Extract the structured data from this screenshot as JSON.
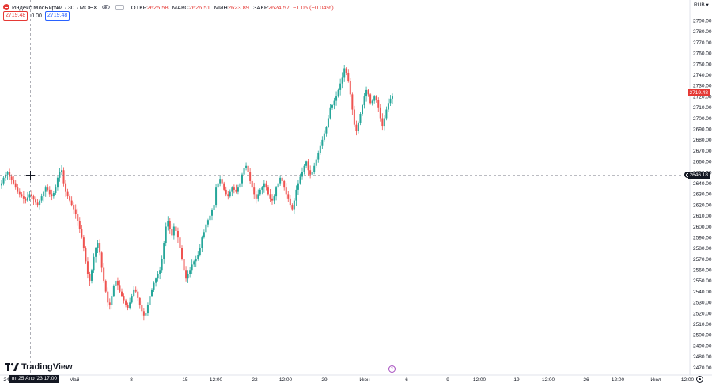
{
  "header": {
    "symbol": "Индекс МосБиржи · 30 · MOEX",
    "open_label": "ОТКР",
    "open_value": "2625.58",
    "high_label": "МАКС",
    "high_value": "2626.51",
    "low_label": "МИН",
    "low_value": "2623.89",
    "close_label": "ЗАКР",
    "close_value": "2624.57",
    "change": "−1.05 (−0.04%)",
    "bid": "2719.48",
    "spread": "0.00",
    "ask": "2719.48"
  },
  "currency": "RUB",
  "price_axis": {
    "ticks": [
      "2790.00",
      "2780.00",
      "2770.00",
      "2760.00",
      "2750.00",
      "2740.00",
      "2730.00",
      "2720.00",
      "2710.00",
      "2700.00",
      "2690.00",
      "2680.00",
      "2670.00",
      "2660.00",
      "2650.00",
      "2640.00",
      "2630.00",
      "2620.00",
      "2610.00",
      "2600.00",
      "2590.00",
      "2580.00",
      "2570.00",
      "2560.00",
      "2550.00",
      "2540.00",
      "2530.00",
      "2520.00",
      "2510.00",
      "2500.00",
      "2490.00",
      "2480.00",
      "2470.00"
    ],
    "last_price_tag": "2719.48",
    "crosshair_price_tag": "2646.18"
  },
  "time_axis": {
    "labels": [
      "24",
      "Май",
      "8",
      "15",
      "12:00",
      "22",
      "12:00",
      "29",
      "Июн",
      "6",
      "9",
      "12:00",
      "19",
      "12:00",
      "26",
      "12:00",
      "Июл",
      "12:00"
    ],
    "crosshair_label": "вт 25 Апр '23   17:00"
  },
  "branding": "TradingView",
  "colors": {
    "up": "#26a69a",
    "down": "#ef5350",
    "accent": "#2962ff"
  },
  "chart_data": {
    "type": "candlestick",
    "symbol": "Индекс МосБиржи",
    "interval": "30",
    "ylim": [
      2466,
      2796
    ],
    "series": [
      {
        "values": [
          2640,
          2645,
          2648,
          2650,
          2646,
          2643,
          2640,
          2636,
          2632,
          2630,
          2628,
          2626,
          2624,
          2627,
          2630,
          2628,
          2625,
          2622,
          2620,
          2624,
          2628,
          2632,
          2636,
          2634,
          2630,
          2628,
          2631,
          2636,
          2645,
          2650,
          2652,
          2640,
          2632,
          2628,
          2624,
          2620,
          2616,
          2612,
          2605,
          2598,
          2590,
          2580,
          2568,
          2556,
          2550,
          2560,
          2572,
          2580,
          2585,
          2576,
          2562,
          2550,
          2540,
          2530,
          2528,
          2536,
          2545,
          2550,
          2546,
          2540,
          2536,
          2532,
          2528,
          2525,
          2530,
          2536,
          2542,
          2540,
          2534,
          2528,
          2522,
          2518,
          2520,
          2528,
          2536,
          2542,
          2548,
          2552,
          2556,
          2560,
          2570,
          2585,
          2600,
          2605,
          2598,
          2592,
          2600,
          2596,
          2590,
          2580,
          2570,
          2560,
          2552,
          2556,
          2560,
          2565,
          2568,
          2570,
          2574,
          2580,
          2590,
          2595,
          2602,
          2606,
          2610,
          2615,
          2620,
          2636,
          2640,
          2644,
          2640,
          2634,
          2630,
          2628,
          2632,
          2636,
          2634,
          2632,
          2636,
          2640,
          2648,
          2654,
          2656,
          2650,
          2642,
          2636,
          2630,
          2626,
          2630,
          2634,
          2636,
          2640,
          2636,
          2630,
          2626,
          2624,
          2628,
          2636,
          2640,
          2645,
          2642,
          2636,
          2630,
          2626,
          2620,
          2616,
          2624,
          2634,
          2640,
          2646,
          2650,
          2656,
          2660,
          2652,
          2648,
          2650,
          2656,
          2662,
          2668,
          2675,
          2680,
          2686,
          2692,
          2700,
          2710,
          2712,
          2716,
          2720,
          2726,
          2732,
          2738,
          2746,
          2742,
          2734,
          2722,
          2708,
          2694,
          2688,
          2696,
          2704,
          2712,
          2720,
          2726,
          2722,
          2714,
          2716,
          2720,
          2717,
          2710,
          2700,
          2693,
          2700,
          2708,
          2714,
          2718,
          2720
        ]
      }
    ]
  }
}
